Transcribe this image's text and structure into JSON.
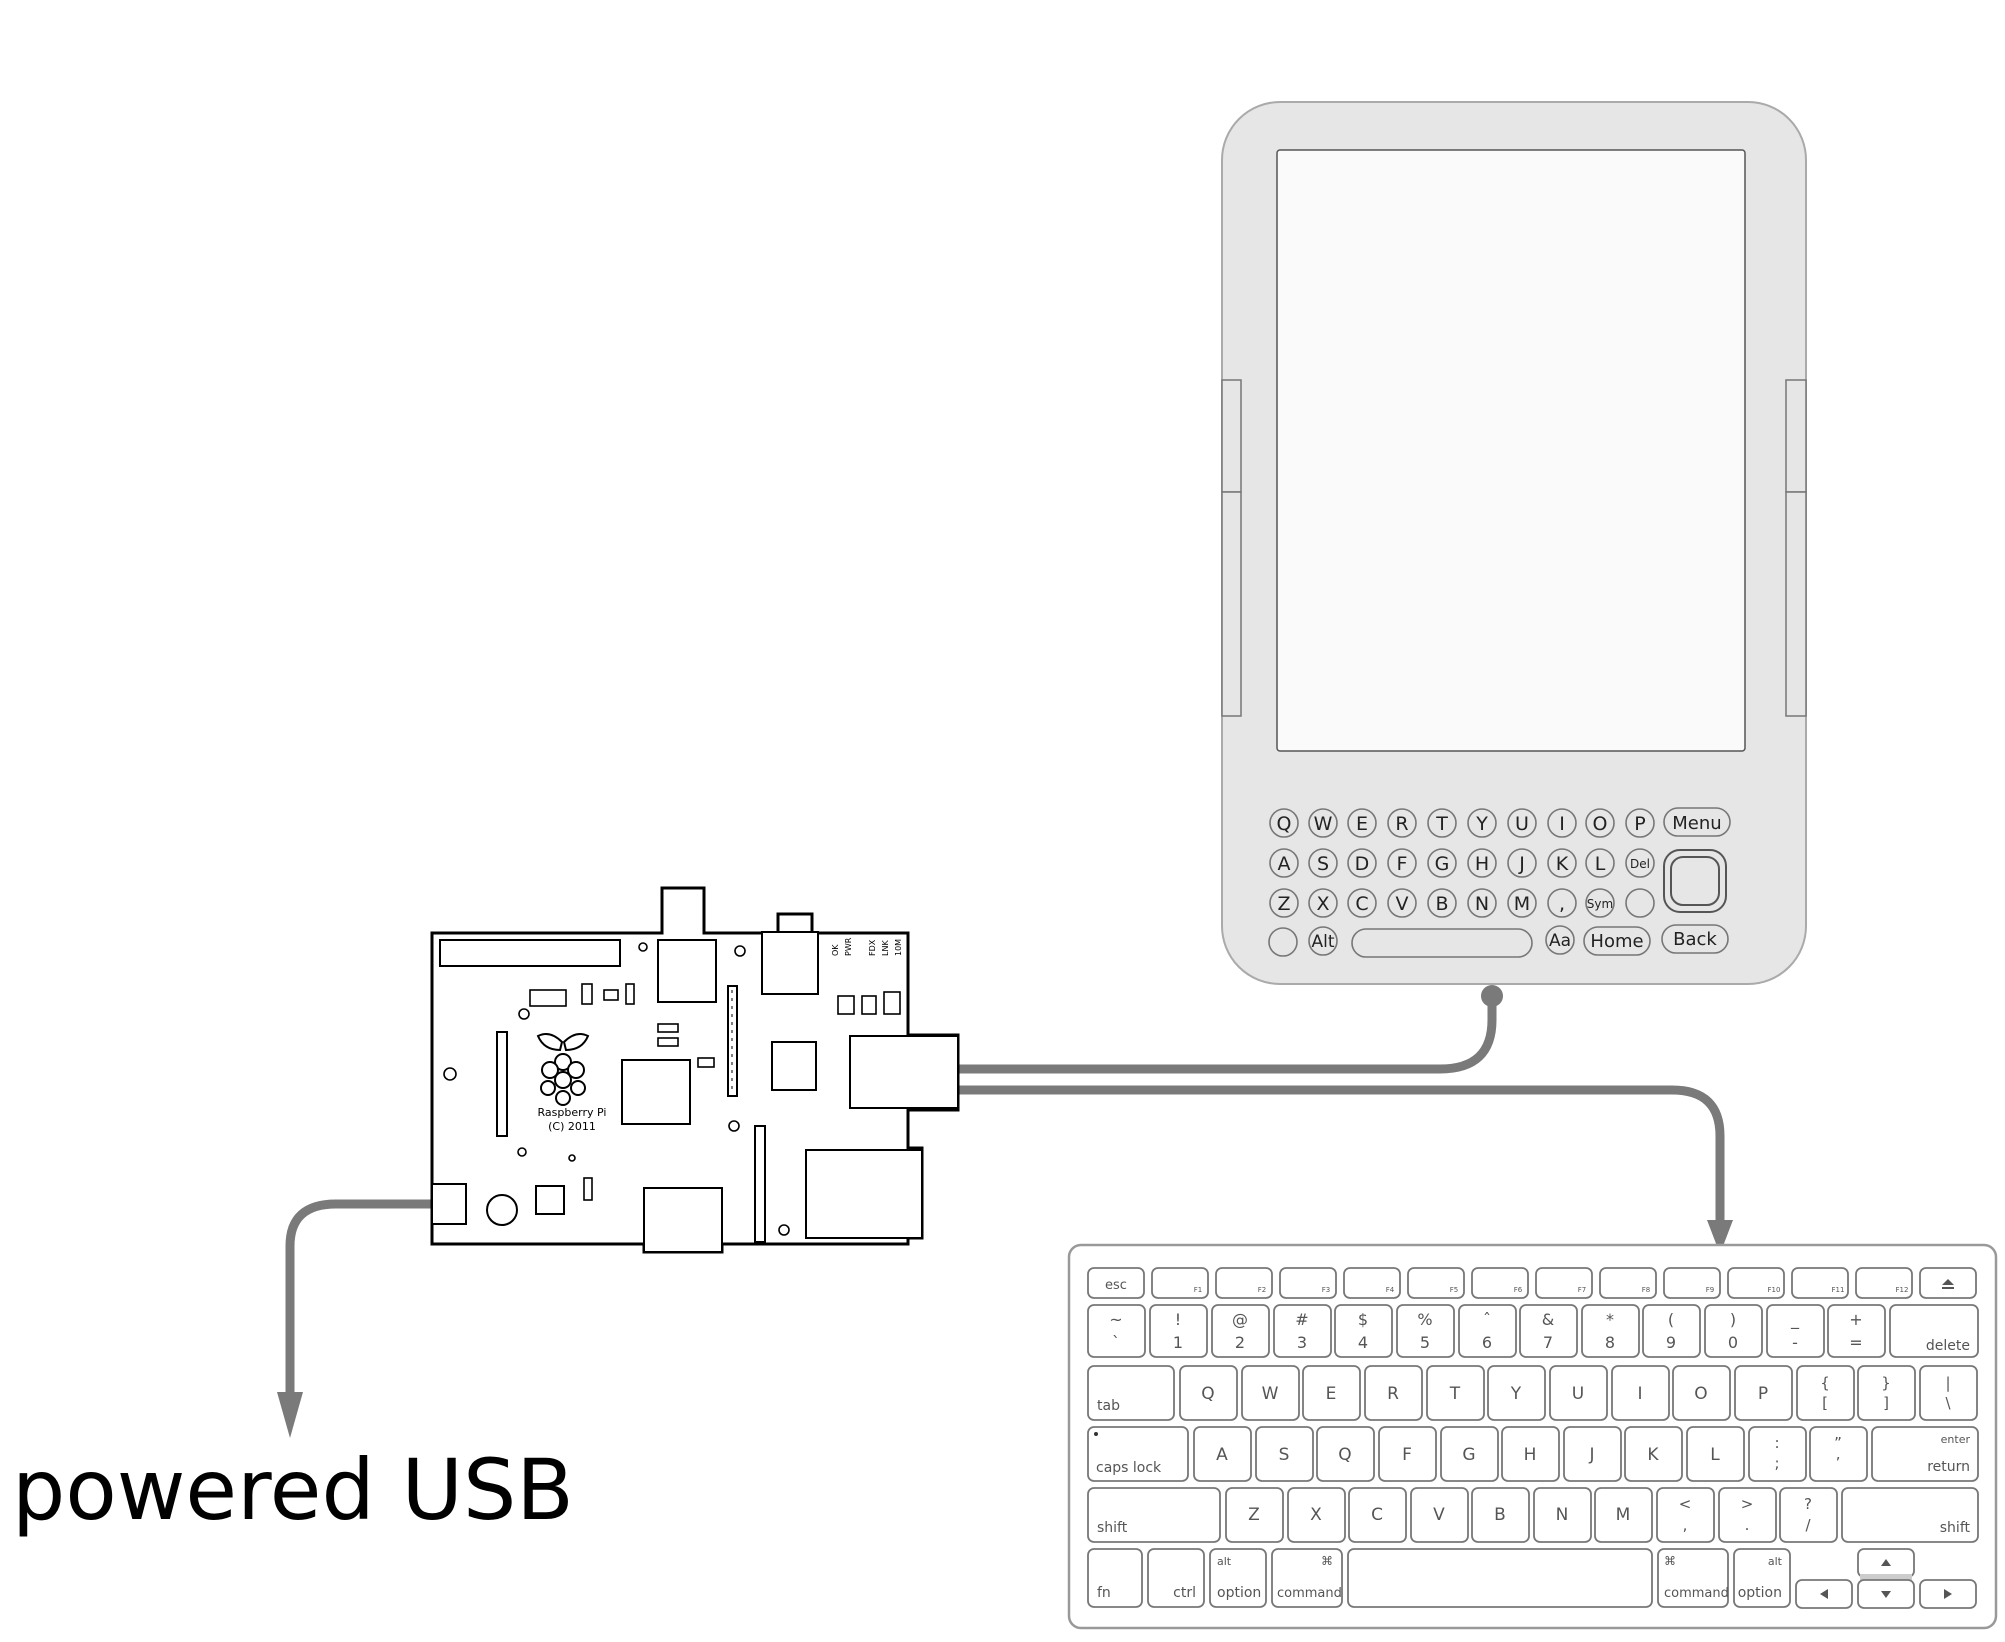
{
  "caption": "powered USB",
  "pi": {
    "name": "Raspberry Pi",
    "copyright": "(C) 2011",
    "leds": [
      "OK",
      "PWR",
      "FDX",
      "LNK",
      "10M"
    ]
  },
  "kindle": {
    "rows": [
      [
        "Q",
        "W",
        "E",
        "R",
        "T",
        "Y",
        "U",
        "I",
        "O",
        "P"
      ],
      [
        "A",
        "S",
        "D",
        "F",
        "G",
        "H",
        "J",
        "K",
        "L",
        "Del"
      ],
      [
        "Z",
        "X",
        "C",
        "V",
        "B",
        "N",
        "M",
        ",",
        "Sym",
        ""
      ]
    ],
    "menu": "Menu",
    "back": "Back",
    "home": "Home",
    "alt": "Alt",
    "aa": "Aa"
  },
  "keyboard": {
    "fn_row": [
      "esc",
      "F1",
      "F2",
      "F3",
      "F4",
      "F5",
      "F6",
      "F7",
      "F8",
      "F9",
      "F10",
      "F11",
      "F12",
      ""
    ],
    "num_row": [
      [
        "~",
        "`"
      ],
      [
        "!",
        "1"
      ],
      [
        "@",
        "2"
      ],
      [
        "#",
        "3"
      ],
      [
        "$",
        "4"
      ],
      [
        "%",
        "5"
      ],
      [
        "ˆ",
        "6"
      ],
      [
        "&",
        "7"
      ],
      [
        "*",
        "8"
      ],
      [
        "(",
        "9"
      ],
      [
        ")",
        "0"
      ],
      [
        "_",
        "-"
      ],
      [
        "+",
        "="
      ]
    ],
    "delete": "delete",
    "tab": "tab",
    "top_row": [
      "Q",
      "W",
      "E",
      "R",
      "T",
      "Y",
      "U",
      "I",
      "O",
      "P"
    ],
    "top_extra": [
      [
        "{",
        "["
      ],
      [
        "}",
        "]"
      ],
      [
        "|",
        "\\"
      ]
    ],
    "caps": "caps lock",
    "home_row": [
      "A",
      "S",
      "Q",
      "F",
      "G",
      "H",
      "J",
      "K",
      "L"
    ],
    "home_extra": [
      [
        ":",
        ";"
      ],
      [
        "”",
        "’"
      ]
    ],
    "enter": "enter",
    "return": "return",
    "shift": "shift",
    "bottom_row": [
      "Z",
      "X",
      "C",
      "V",
      "B",
      "N",
      "M"
    ],
    "bottom_extra": [
      [
        "<",
        ","
      ],
      [
        ">",
        "."
      ],
      [
        "?",
        "/"
      ]
    ],
    "fn": "fn",
    "ctrl": "ctrl",
    "alt": "alt",
    "option": "option",
    "command": "command",
    "cmd_symbol": "⌘"
  }
}
